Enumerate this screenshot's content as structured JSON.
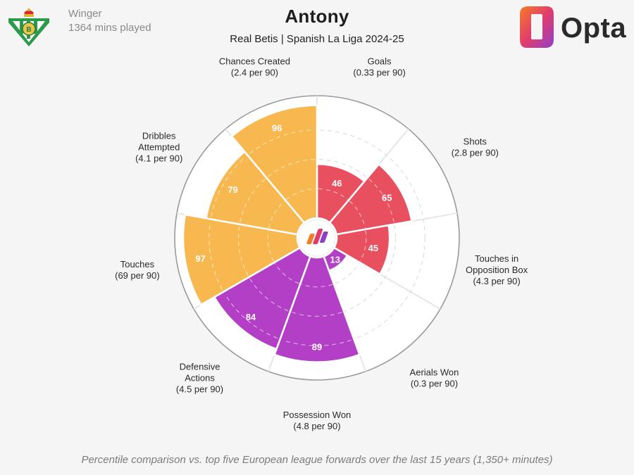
{
  "player": {
    "name": "Antony",
    "subtitle": "Real Betis | Spanish La Liga 2024-25",
    "position": "Winger",
    "minutes": "1364 mins played"
  },
  "brand": {
    "name": "Opta",
    "logo_icon": "opta-logo-icon",
    "crest_icon": "real-betis-crest-icon"
  },
  "footer": "Percentile comparison vs. top five European league forwards over the last 15 years (1,350+ minutes)",
  "colors": {
    "attacking": "#e8505f",
    "possession": "#b33fc6",
    "creation": "#f6b84f",
    "background": "#f5f5f5",
    "grid": "#d9d9d9"
  },
  "chart_data": {
    "type": "polar-bar",
    "scale_max": 100,
    "metrics": [
      {
        "name": "Goals",
        "value_label": "(0.33 per 90)",
        "percentile": 46,
        "group": "attacking"
      },
      {
        "name": "Shots",
        "value_label": "(2.8 per 90)",
        "percentile": 65,
        "group": "attacking"
      },
      {
        "name": "Touches in Opposition Box",
        "value_label": "(4.3 per 90)",
        "percentile": 45,
        "group": "attacking"
      },
      {
        "name": "Aerials Won",
        "value_label": "(0.3 per 90)",
        "percentile": 13,
        "group": "possession"
      },
      {
        "name": "Possession Won",
        "value_label": "(4.8 per 90)",
        "percentile": 89,
        "group": "possession"
      },
      {
        "name": "Defensive Actions",
        "value_label": "(4.5 per 90)",
        "percentile": 84,
        "group": "possession"
      },
      {
        "name": "Touches",
        "value_label": "(69 per 90)",
        "percentile": 97,
        "group": "creation"
      },
      {
        "name": "Dribbles Attempted",
        "value_label": "(4.1 per 90)",
        "percentile": 79,
        "group": "creation"
      },
      {
        "name": "Chances Created",
        "value_label": "(2.4 per 90)",
        "percentile": 96,
        "group": "creation"
      }
    ]
  }
}
